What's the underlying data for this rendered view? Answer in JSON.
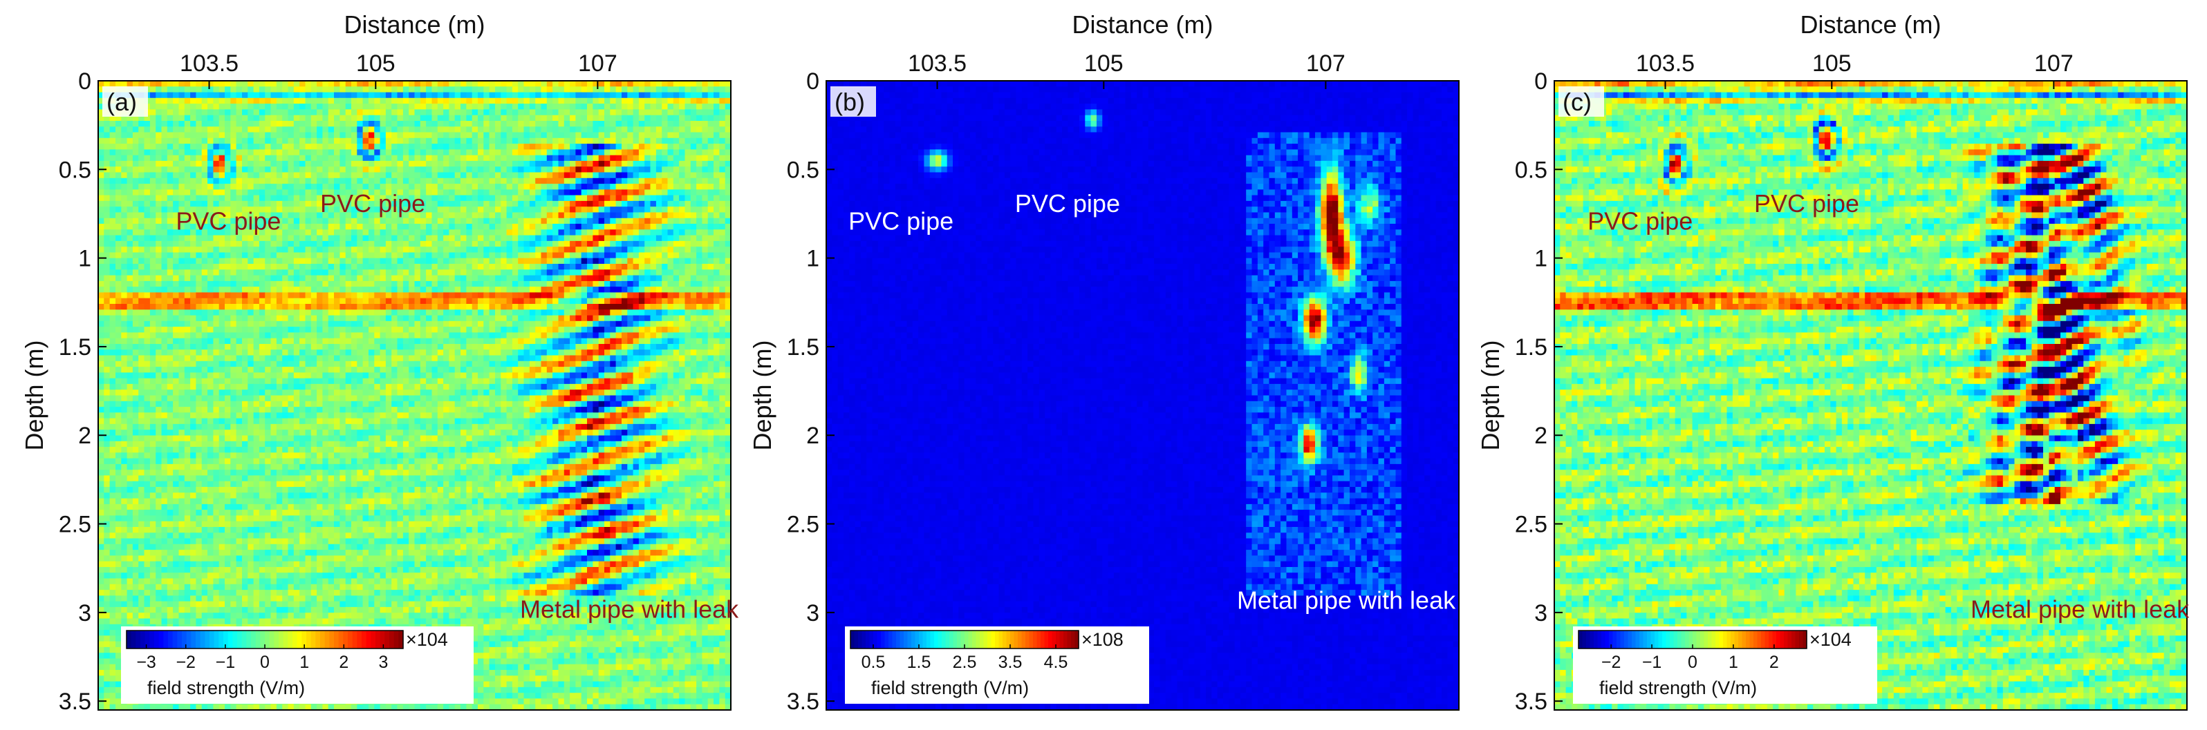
{
  "chart_data": [
    {
      "type": "heatmap",
      "panel_label": "(a)",
      "xlabel": "Distance (m)",
      "ylabel": "Depth (m)",
      "xlim": [
        102.5,
        108.2
      ],
      "ylim": [
        3.55,
        0
      ],
      "x_ticks": [
        103.5,
        105,
        107
      ],
      "x_tick_labels": [
        "103.5",
        "105",
        "107"
      ],
      "y_ticks": [
        0,
        0.5,
        1,
        1.5,
        2,
        2.5,
        3,
        3.5
      ],
      "y_tick_labels": [
        "0",
        "0.5",
        "1",
        "1.5",
        "2",
        "2.5",
        "3",
        "3.5"
      ],
      "colormap": "jet",
      "colorbar": {
        "range": [
          -3.5,
          3.5
        ],
        "ticks": [
          -3,
          -2,
          -1,
          0,
          1,
          2,
          3
        ],
        "tick_labels": [
          "−3",
          "−2",
          "−1",
          "0",
          "1",
          "2",
          "3"
        ],
        "multiplier": "×104",
        "title": "field strength (V/m)"
      },
      "annotations": [
        {
          "text": "PVC pipe",
          "x": 103.2,
          "y": 0.84,
          "color": "#8b1a1a"
        },
        {
          "text": "PVC pipe",
          "x": 104.5,
          "y": 0.74,
          "color": "#8b1a1a"
        },
        {
          "text": "Metal pipe with leak",
          "x": 106.3,
          "y": 3.03,
          "color": "#8b1a1a"
        }
      ],
      "features": [
        {
          "name": "PVC pipe",
          "x": 103.6,
          "depth": 0.48
        },
        {
          "name": "PVC pipe",
          "x": 104.95,
          "depth": 0.33
        },
        {
          "name": "Metal pipe with leak",
          "x": 107.0,
          "depth_range": [
            0.4,
            2.8
          ]
        }
      ]
    },
    {
      "type": "heatmap",
      "panel_label": "(b)",
      "xlabel": "Distance (m)",
      "ylabel": "Depth (m)",
      "xlim": [
        102.5,
        108.2
      ],
      "ylim": [
        3.55,
        0
      ],
      "x_ticks": [
        103.5,
        105,
        107
      ],
      "x_tick_labels": [
        "103.5",
        "105",
        "107"
      ],
      "y_ticks": [
        0,
        0.5,
        1,
        1.5,
        2,
        2.5,
        3,
        3.5
      ],
      "y_tick_labels": [
        "0",
        "0.5",
        "1",
        "1.5",
        "2",
        "2.5",
        "3",
        "3.5"
      ],
      "colormap": "jet",
      "colorbar": {
        "range": [
          0,
          5
        ],
        "ticks": [
          0.5,
          1.5,
          2.5,
          3.5,
          4.5
        ],
        "tick_labels": [
          "0.5",
          "1.5",
          "2.5",
          "3.5",
          "4.5"
        ],
        "multiplier": "×108",
        "title": "field strength (V/m)"
      },
      "annotations": [
        {
          "text": "PVC pipe",
          "x": 102.7,
          "y": 0.84,
          "color": "#ffffff"
        },
        {
          "text": "PVC pipe",
          "x": 104.2,
          "y": 0.74,
          "color": "#ffffff"
        },
        {
          "text": "Metal pipe with leak",
          "x": 106.2,
          "y": 2.98,
          "color": "#ffffff"
        }
      ],
      "features": [
        {
          "name": "PVC pipe",
          "x": 103.5,
          "depth": 0.45
        },
        {
          "name": "PVC pipe",
          "x": 104.9,
          "depth": 0.22
        },
        {
          "name": "Metal pipe with leak",
          "x": 107.0,
          "depth_range": [
            0.3,
            2.9
          ]
        }
      ]
    },
    {
      "type": "heatmap",
      "panel_label": "(c)",
      "xlabel": "Distance (m)",
      "ylabel": "Depth (m)",
      "xlim": [
        102.5,
        108.2
      ],
      "ylim": [
        3.55,
        0
      ],
      "x_ticks": [
        103.5,
        105,
        107
      ],
      "x_tick_labels": [
        "103.5",
        "105",
        "107"
      ],
      "y_ticks": [
        0,
        0.5,
        1,
        1.5,
        2,
        2.5,
        3,
        3.5
      ],
      "y_tick_labels": [
        "0",
        "0.5",
        "1",
        "1.5",
        "2",
        "2.5",
        "3",
        "3.5"
      ],
      "colormap": "jet",
      "colorbar": {
        "range": [
          -2.8,
          2.8
        ],
        "ticks": [
          -2,
          -1,
          0,
          1,
          2
        ],
        "tick_labels": [
          "−2",
          "−1",
          "0",
          "1",
          "2"
        ],
        "multiplier": "×104",
        "title": "field strength (V/m)"
      },
      "annotations": [
        {
          "text": "PVC pipe",
          "x": 102.8,
          "y": 0.84,
          "color": "#8b1a1a"
        },
        {
          "text": "PVC pipe",
          "x": 104.3,
          "y": 0.74,
          "color": "#8b1a1a"
        },
        {
          "text": "Metal pipe with leak",
          "x": 106.25,
          "y": 3.03,
          "color": "#8b1a1a"
        }
      ],
      "features": [
        {
          "name": "PVC pipe",
          "x": 103.5,
          "depth": 0.45
        },
        {
          "name": "PVC pipe",
          "x": 104.95,
          "depth": 0.28
        },
        {
          "name": "Metal pipe with leak",
          "x": 107.0,
          "depth_range": [
            0.5,
            2.3
          ]
        }
      ]
    }
  ]
}
